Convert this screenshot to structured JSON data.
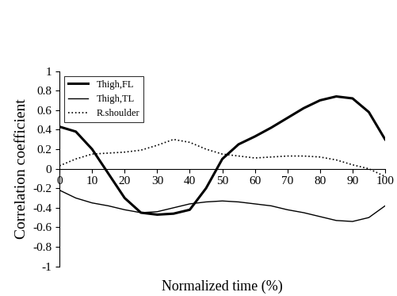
{
  "chart_data": {
    "type": "line",
    "x_label": "Normalized time (%)",
    "y_label": "Correlation coefficient",
    "x": [
      0,
      5,
      10,
      15,
      20,
      25,
      30,
      35,
      40,
      45,
      50,
      55,
      60,
      65,
      70,
      75,
      80,
      85,
      90,
      95,
      100
    ],
    "series": [
      {
        "name": "Thigh,FL",
        "color": "#000000",
        "line_style": "solid",
        "values": [
          0.43,
          0.38,
          0.2,
          -0.05,
          -0.3,
          -0.45,
          -0.47,
          -0.46,
          -0.42,
          -0.2,
          0.1,
          0.25,
          0.33,
          0.42,
          0.52,
          0.62,
          0.7,
          0.74,
          0.72,
          0.58,
          0.3
        ]
      },
      {
        "name": "Thigh,TL",
        "color": "#000000",
        "line_style": "solid",
        "values": [
          -0.22,
          -0.3,
          -0.35,
          -0.38,
          -0.42,
          -0.45,
          -0.44,
          -0.4,
          -0.36,
          -0.34,
          -0.33,
          -0.34,
          -0.36,
          -0.38,
          -0.42,
          -0.45,
          -0.49,
          -0.53,
          -0.54,
          -0.5,
          -0.38
        ]
      },
      {
        "name": "R.shoulder",
        "color": "#000000",
        "line_style": "dotted",
        "values": [
          0.03,
          0.1,
          0.15,
          0.16,
          0.17,
          0.19,
          0.24,
          0.3,
          0.27,
          0.2,
          0.15,
          0.13,
          0.11,
          0.12,
          0.13,
          0.13,
          0.12,
          0.09,
          0.04,
          0.0,
          -0.08
        ]
      }
    ],
    "xlim": [
      0,
      100
    ],
    "xticks": [
      0,
      10,
      20,
      30,
      40,
      50,
      60,
      70,
      80,
      90,
      100
    ],
    "ylim": [
      -1,
      1
    ],
    "yticks": [
      -1,
      -0.8,
      -0.6,
      -0.4,
      -0.2,
      0,
      0.2,
      0.4,
      0.6,
      0.8,
      1
    ],
    "legend": "upper left",
    "grid": false
  }
}
